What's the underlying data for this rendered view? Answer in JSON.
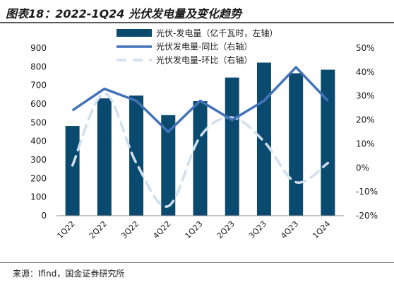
{
  "title": "图表18：2022-1Q24 光伏发电量及变化趋势",
  "source": "来源：Ifind，国金证券研究所",
  "colors": {
    "bar": "#0b4a6f",
    "yoy": "#4272b8",
    "qoq": "#d0dfef"
  },
  "chart_data": {
    "type": "bar",
    "categories": [
      "1Q22",
      "2Q22",
      "3Q22",
      "4Q22",
      "1Q23",
      "2Q23",
      "3Q23",
      "4Q23",
      "1Q24"
    ],
    "series": [
      {
        "name": "光伏-发电量（亿千瓦时，左轴）",
        "kind": "bar",
        "axis": "left",
        "values": [
          482,
          630,
          645,
          540,
          615,
          742,
          822,
          765,
          784
        ]
      },
      {
        "name": "光伏发电量-同比（右轴）",
        "kind": "line",
        "axis": "right",
        "values": [
          24,
          33,
          28,
          15,
          28,
          20,
          28,
          42,
          28
        ]
      },
      {
        "name": "光伏发电量-环比（右轴）",
        "kind": "dashed-line",
        "axis": "right",
        "values": [
          1,
          31,
          2,
          -16,
          13,
          21,
          11,
          -6,
          2
        ]
      }
    ],
    "ylim_left": [
      0,
      900
    ],
    "ylim_right": [
      -20,
      50
    ],
    "yticks_left": [
      "0",
      "100",
      "200",
      "300",
      "400",
      "500",
      "600",
      "700",
      "800",
      "900"
    ],
    "yticks_right": [
      "-20%",
      "-10%",
      "0%",
      "10%",
      "20%",
      "30%",
      "40%",
      "50%"
    ],
    "legend": [
      "光伏-发电量（亿千瓦时，左轴）",
      "光伏发电量-同比（右轴）",
      "光伏发电量-环比（右轴）"
    ],
    "legend_position": "top",
    "grid": false
  }
}
